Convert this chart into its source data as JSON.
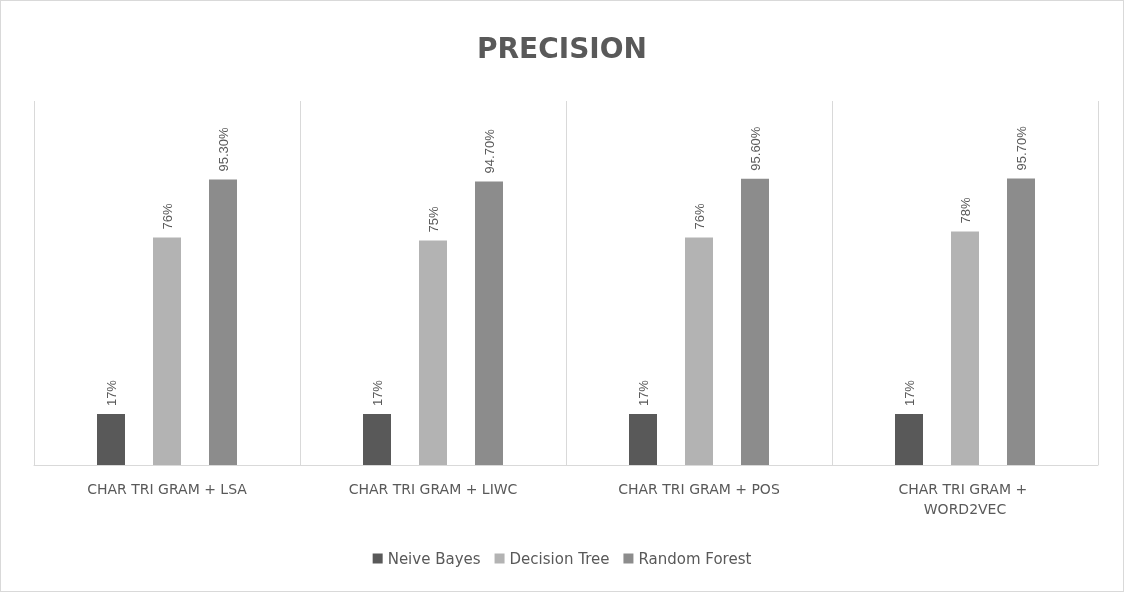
{
  "chart_data": {
    "type": "bar",
    "title": "PRECISION",
    "categories": [
      "CHAR TRI GRAM + LSA",
      "CHAR TRI GRAM + LIWC",
      "CHAR TRI GRAM + POS",
      "CHAR TRI GRAM + WORD2VEC"
    ],
    "series": [
      {
        "name": "Neive Bayes",
        "color": "#595959",
        "values": [
          17,
          17,
          17,
          17
        ],
        "value_labels": [
          "17%",
          "17%",
          "17%",
          "17%"
        ]
      },
      {
        "name": "Decision Tree",
        "color": "#b3b3b3",
        "values": [
          76,
          75,
          76,
          78
        ],
        "value_labels": [
          "76%",
          "75%",
          "76%",
          "78%"
        ]
      },
      {
        "name": "Random Forest",
        "color": "#8c8c8c",
        "values": [
          95.3,
          94.7,
          95.6,
          95.7
        ],
        "value_labels": [
          "95.30%",
          "94.70%",
          "95.60%",
          "95.70%"
        ]
      }
    ],
    "grid": "x",
    "legend": "bottom"
  }
}
